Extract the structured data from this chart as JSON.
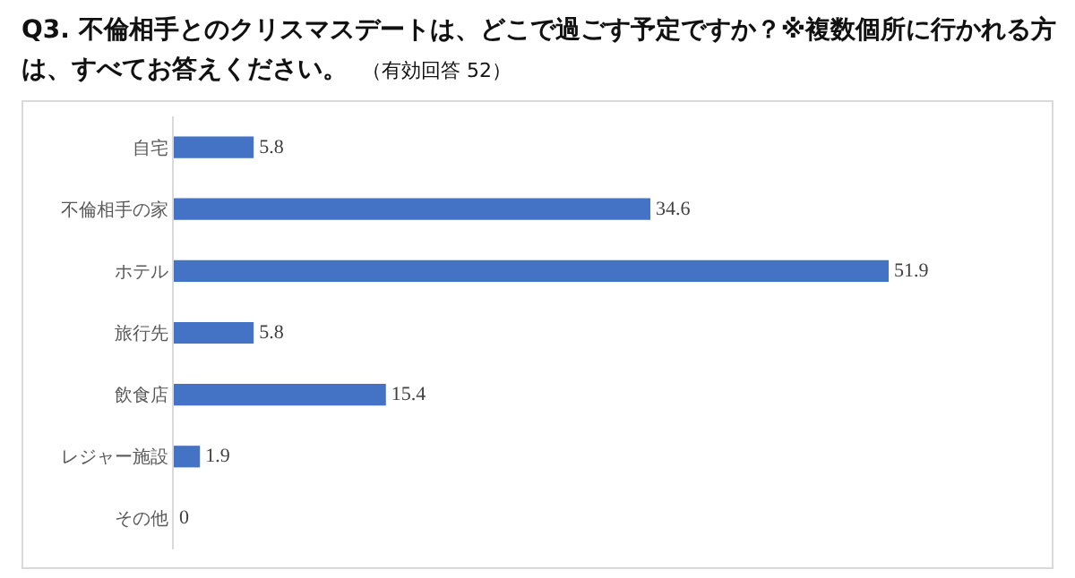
{
  "chart_data": {
    "type": "bar",
    "orientation": "horizontal",
    "title": "Q3. 不倫相手とのクリスマスデートは、どこで過ごす予定ですか？※複数個所に行かれる方は、すべてお答えください。",
    "subtitle": "（有効回答 52）",
    "categories": [
      "自宅",
      "不倫相手の家",
      "ホテル",
      "旅行先",
      "飲食店",
      "レジャー施設",
      "その他"
    ],
    "values": [
      5.8,
      34.6,
      51.9,
      5.8,
      15.4,
      1.9,
      0
    ],
    "color": "#4472c4",
    "data_labels": true,
    "tick_labels": "y"
  }
}
